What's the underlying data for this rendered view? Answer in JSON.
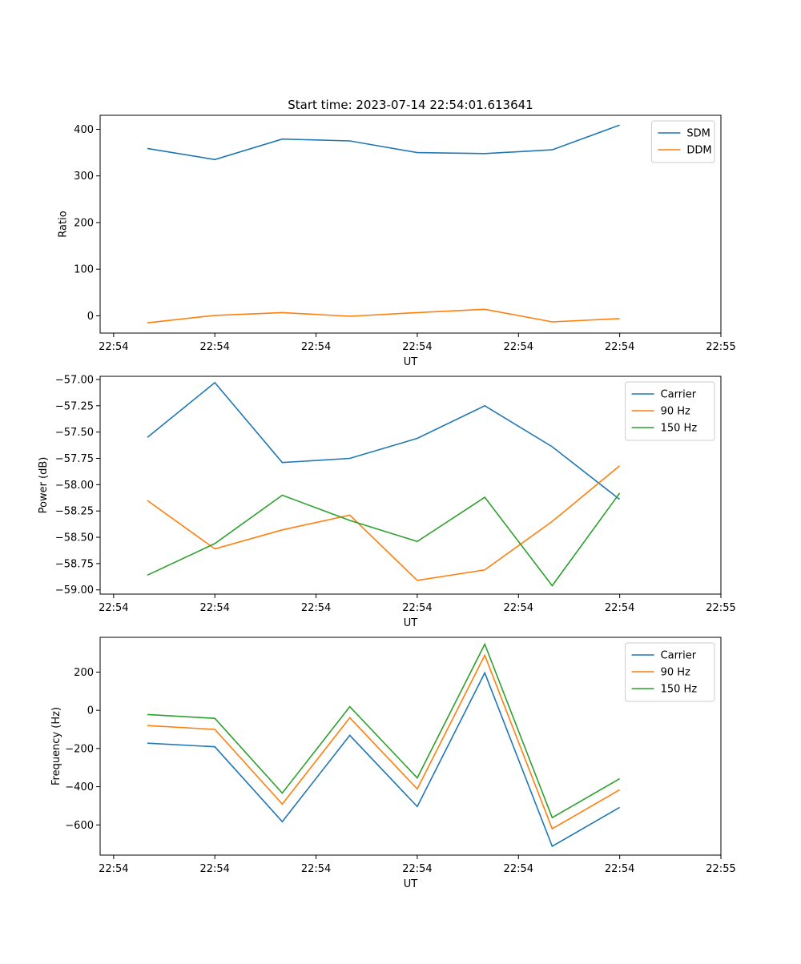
{
  "title": "Start time: 2023-07-14 22:54:01.613641",
  "colors": {
    "blue": "#1f77b4",
    "orange": "#ff7f0e",
    "green": "#2ca02c",
    "frame": "#000000"
  },
  "chart_data": [
    {
      "type": "line",
      "title": "Start time: 2023-07-14 22:54:01.613641",
      "xlabel": "UT",
      "ylabel": "Ratio",
      "x": [
        1,
        2,
        3,
        4,
        5,
        6,
        7,
        8
      ],
      "xlim": [
        0.3,
        9.5
      ],
      "xticks": [
        0.5,
        2,
        3.5,
        5,
        6.5,
        8,
        9.5
      ],
      "xtick_labels": [
        "22:54",
        "22:54",
        "22:54",
        "22:54",
        "22:54",
        "22:54",
        "22:55"
      ],
      "ylim": [
        -37,
        430
      ],
      "yticks": [
        0,
        100,
        200,
        300,
        400
      ],
      "ytick_labels": [
        "0",
        "100",
        "200",
        "300",
        "400"
      ],
      "legend": "top-right",
      "series": [
        {
          "name": "SDM",
          "color": "#1f77b4",
          "values": [
            359,
            335,
            379,
            375,
            350,
            348,
            356,
            409
          ]
        },
        {
          "name": "DDM",
          "color": "#ff7f0e",
          "values": [
            -15,
            1,
            7,
            -1,
            7,
            14,
            -13,
            -6
          ]
        }
      ]
    },
    {
      "type": "line",
      "title": "",
      "xlabel": "UT",
      "ylabel": "Power (dB)",
      "x": [
        1,
        2,
        3,
        4,
        5,
        6,
        7,
        8
      ],
      "xlim": [
        0.3,
        9.5
      ],
      "xticks": [
        0.5,
        2,
        3.5,
        5,
        6.5,
        8,
        9.5
      ],
      "xtick_labels": [
        "22:54",
        "22:54",
        "22:54",
        "22:54",
        "22:54",
        "22:54",
        "22:55"
      ],
      "ylim": [
        -59.04,
        -56.97
      ],
      "yticks": [
        -57.0,
        -57.25,
        -57.5,
        -57.75,
        -58.0,
        -58.25,
        -58.5,
        -58.75,
        -59.0
      ],
      "ytick_labels": [
        "−57.00",
        "−57.25",
        "−57.50",
        "−57.75",
        "−58.00",
        "−58.25",
        "−58.50",
        "−58.75",
        "−59.00"
      ],
      "legend": "top-right",
      "series": [
        {
          "name": "Carrier",
          "color": "#1f77b4",
          "values": [
            -57.55,
            -57.03,
            -57.79,
            -57.75,
            -57.56,
            -57.25,
            -57.64,
            -58.14
          ]
        },
        {
          "name": "90 Hz",
          "color": "#ff7f0e",
          "values": [
            -58.15,
            -58.61,
            -58.43,
            -58.29,
            -58.91,
            -58.81,
            -58.35,
            -57.82
          ]
        },
        {
          "name": "150 Hz",
          "color": "#2ca02c",
          "values": [
            -58.86,
            -58.56,
            -58.1,
            -58.34,
            -58.54,
            -58.12,
            -58.96,
            -58.08
          ]
        }
      ]
    },
    {
      "type": "line",
      "title": "",
      "xlabel": "UT",
      "ylabel": "Frequency (Hz)",
      "x": [
        1,
        2,
        3,
        4,
        5,
        6,
        7,
        8
      ],
      "xlim": [
        0.3,
        9.5
      ],
      "xticks": [
        0.5,
        2,
        3.5,
        5,
        6.5,
        8,
        9.5
      ],
      "xtick_labels": [
        "22:54",
        "22:54",
        "22:54",
        "22:54",
        "22:54",
        "22:54",
        "22:55"
      ],
      "ylim": [
        -758,
        382
      ],
      "yticks": [
        200,
        0,
        -200,
        -400,
        -600
      ],
      "ytick_labels": [
        "200",
        "0",
        "−200",
        "−400",
        "−600"
      ],
      "legend": "top-right",
      "series": [
        {
          "name": "Carrier",
          "color": "#1f77b4",
          "values": [
            -172,
            -191,
            -583,
            -131,
            -504,
            196,
            -712,
            -508
          ]
        },
        {
          "name": "90 Hz",
          "color": "#ff7f0e",
          "values": [
            -80,
            -100,
            -491,
            -39,
            -412,
            288,
            -620,
            -416
          ]
        },
        {
          "name": "150 Hz",
          "color": "#2ca02c",
          "values": [
            -22,
            -42,
            -433,
            19,
            -354,
            346,
            -562,
            -358
          ]
        }
      ]
    }
  ]
}
